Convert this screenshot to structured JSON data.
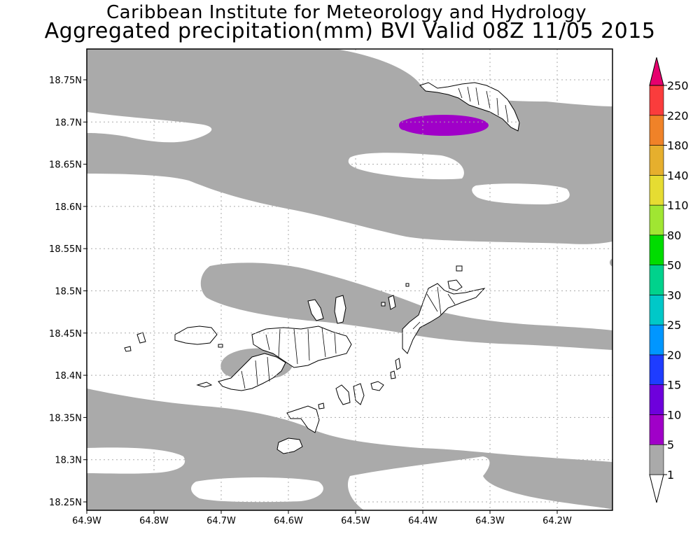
{
  "title": {
    "line1": "Caribbean Institute for Meteorology and Hydrology",
    "line2": "Aggregated precipitation(mm) BVI Valid 08Z 11/05 2015"
  },
  "map": {
    "lon_range": [
      -64.9,
      -64.13
    ],
    "lat_range": [
      18.24,
      18.78
    ],
    "lon_ticks": [
      "64.9W",
      "64.8W",
      "64.7W",
      "64.6W",
      "64.5W",
      "64.4W",
      "64.3W",
      "64.2W"
    ],
    "lat_ticks": [
      "18.75N",
      "18.7N",
      "18.65N",
      "18.6N",
      "18.55N",
      "18.5N",
      "18.45N",
      "18.4N",
      "18.35N",
      "18.3N",
      "18.25N"
    ],
    "grid": true
  },
  "colorbar": {
    "levels": [
      "1",
      "5",
      "10",
      "15",
      "20",
      "25",
      "30",
      "50",
      "80",
      "110",
      "140",
      "180",
      "220",
      "250"
    ],
    "colors": [
      "#ffffff",
      "#aaaaaa",
      "#a000c8",
      "#6e00dc",
      "#1e3cff",
      "#0096ff",
      "#00c8c8",
      "#00d28c",
      "#00dc00",
      "#a0e632",
      "#e6dc32",
      "#e6af2d",
      "#f08228",
      "#fa3c3c",
      "#e6006e"
    ]
  },
  "colors": {
    "rain_1_5": "#aaaaaa",
    "rain_5_10": "#a000c8",
    "grid": "#aaaaaa"
  }
}
